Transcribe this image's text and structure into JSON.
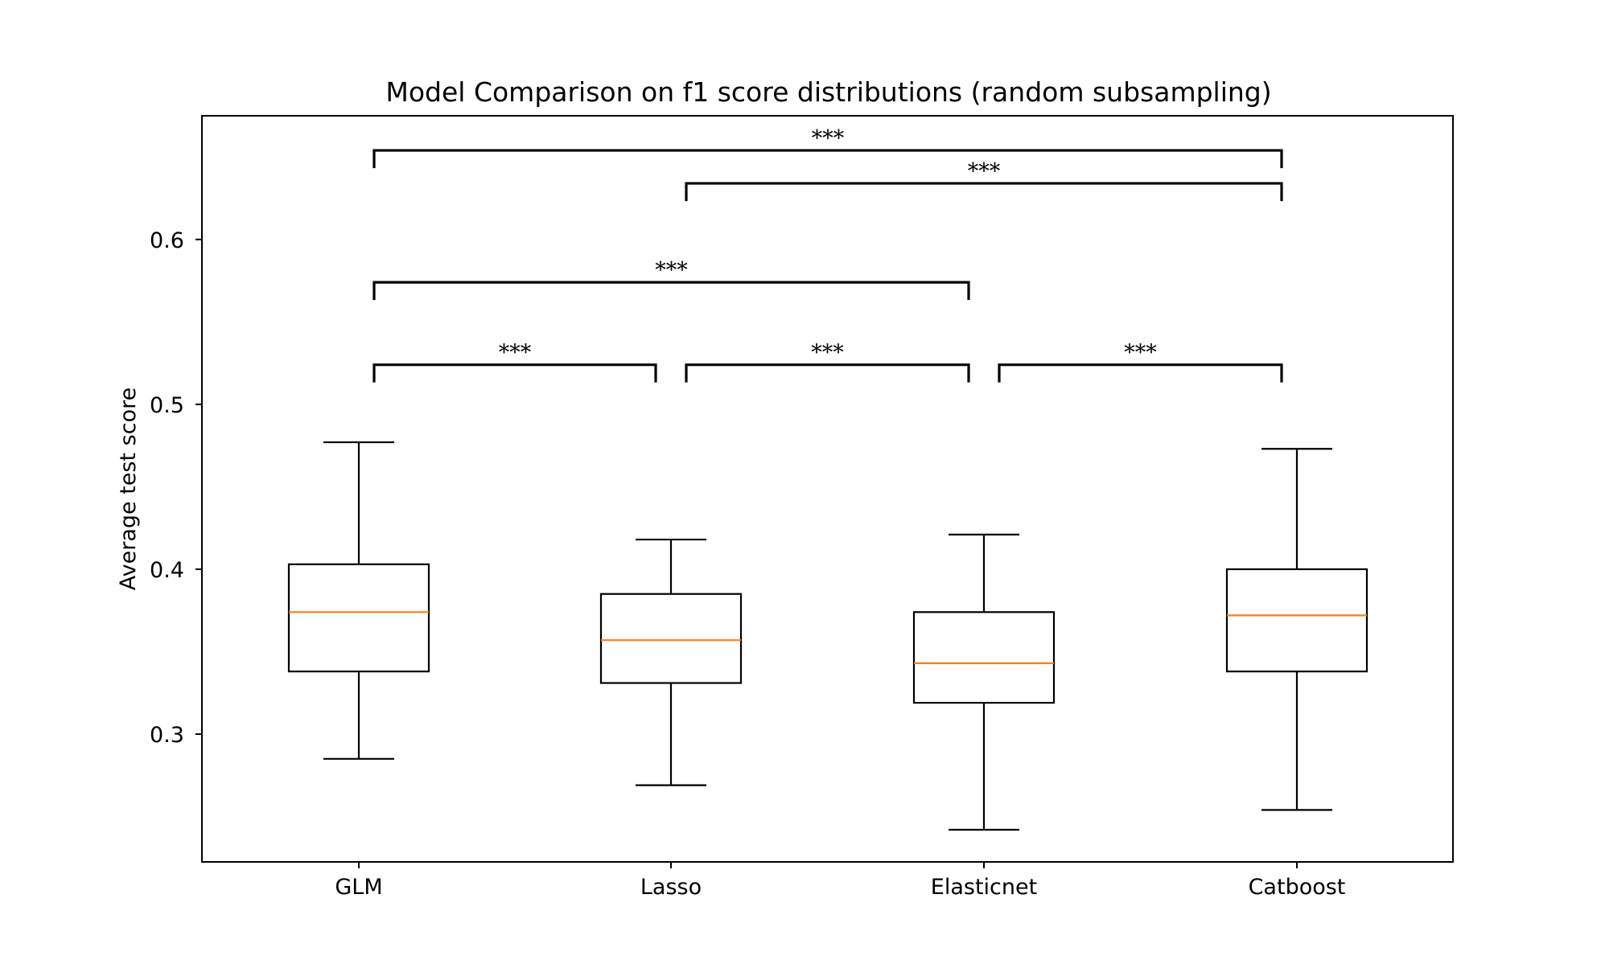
{
  "chart_data": {
    "type": "box",
    "title": "Model Comparison on f1 score distributions (random subsampling)",
    "xlabel": "",
    "ylabel": "Average test score",
    "ylim": [
      0.2225,
      0.675
    ],
    "yticks": [
      0.3,
      0.4,
      0.5,
      0.6
    ],
    "ytick_labels": [
      "0.3",
      "0.4",
      "0.5",
      "0.6"
    ],
    "categories": [
      "GLM",
      "Lasso",
      "Elasticnet",
      "Catboost"
    ],
    "boxes": [
      {
        "label": "GLM",
        "whisker_low": 0.285,
        "q1": 0.338,
        "median": 0.374,
        "q3": 0.403,
        "whisker_high": 0.477
      },
      {
        "label": "Lasso",
        "whisker_low": 0.269,
        "q1": 0.331,
        "median": 0.357,
        "q3": 0.385,
        "whisker_high": 0.418
      },
      {
        "label": "Elasticnet",
        "whisker_low": 0.242,
        "q1": 0.319,
        "median": 0.343,
        "q3": 0.374,
        "whisker_high": 0.421
      },
      {
        "label": "Catboost",
        "whisker_low": 0.254,
        "q1": 0.338,
        "median": 0.372,
        "q3": 0.4,
        "whisker_high": 0.473
      }
    ],
    "significance": [
      {
        "from": 0,
        "to": 1,
        "y": 0.524,
        "label": "***"
      },
      {
        "from": 1,
        "to": 2,
        "y": 0.524,
        "label": "***"
      },
      {
        "from": 2,
        "to": 3,
        "y": 0.524,
        "label": "***"
      },
      {
        "from": 0,
        "to": 2,
        "y": 0.574,
        "label": "***"
      },
      {
        "from": 1,
        "to": 3,
        "y": 0.634,
        "label": "***"
      },
      {
        "from": 0,
        "to": 3,
        "y": 0.654,
        "label": "***"
      }
    ],
    "grid": false,
    "colors": {
      "box": "#000000",
      "median": "#ff7f0e",
      "bracket": "#000000"
    }
  }
}
